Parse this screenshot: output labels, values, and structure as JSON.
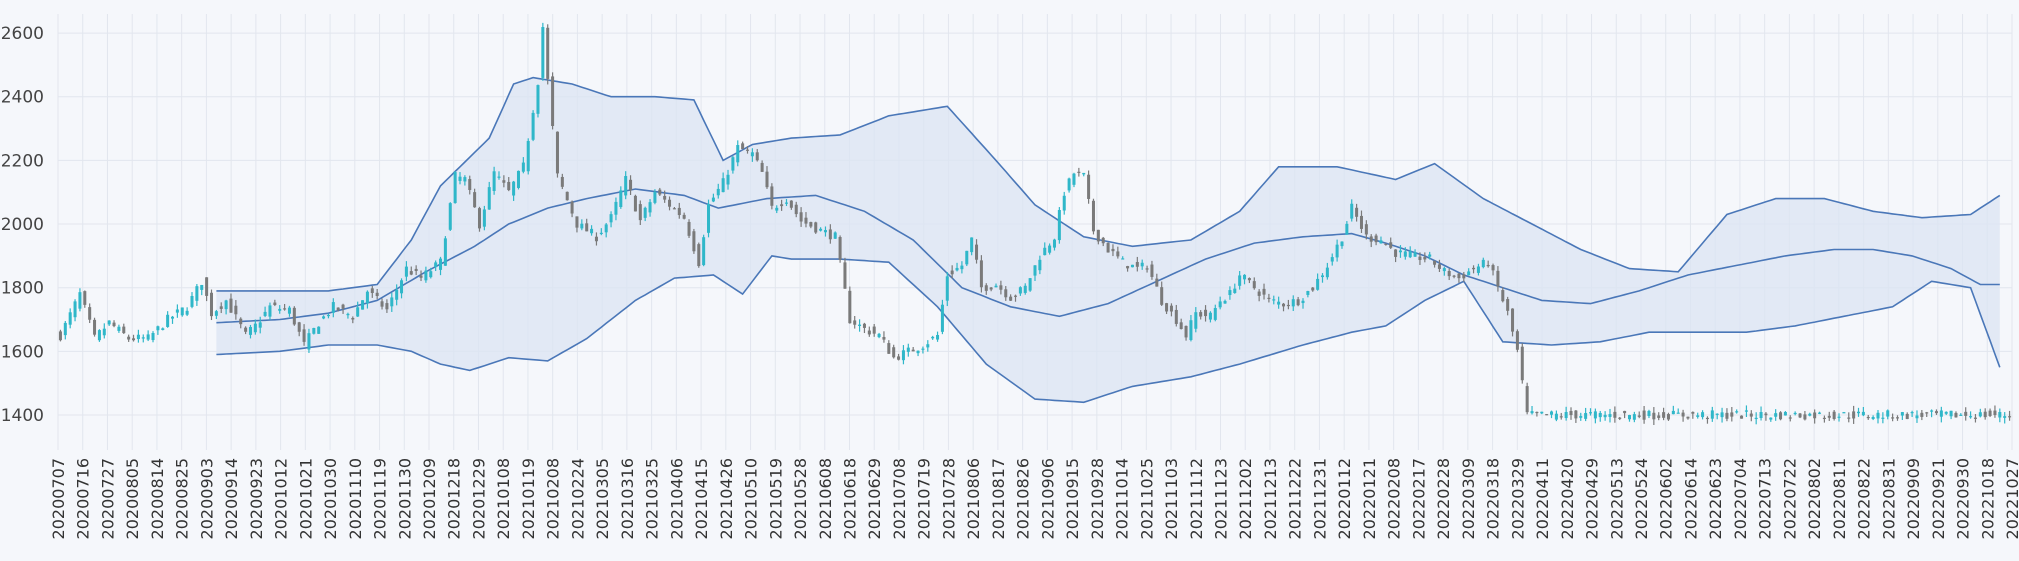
{
  "chart_data": {
    "type": "candlestick",
    "title": "",
    "xlabel": "",
    "ylabel": "",
    "ylim": [
      1290,
      2660
    ],
    "yticks": [
      1400,
      1600,
      1800,
      2000,
      2200,
      2400,
      2600
    ],
    "grid": true,
    "colors": {
      "up": "#2fb7c9",
      "down": "#7a7a7a",
      "band_line": "#4a77b8",
      "band_fill": "#dbe4f3",
      "grid": "#e2e6ee",
      "background": "#f5f7fb"
    },
    "x_tick_labels": [
      "20200707",
      "20200716",
      "20200727",
      "20200805",
      "20200814",
      "20200825",
      "20200903",
      "20200914",
      "20200923",
      "20201012",
      "20201021",
      "20201030",
      "20201110",
      "20201119",
      "20201130",
      "20201209",
      "20201218",
      "20201229",
      "20210108",
      "20210119",
      "20210208",
      "20210224",
      "20210305",
      "20210316",
      "20210325",
      "20210406",
      "20210415",
      "20210426",
      "20210510",
      "20210519",
      "20210528",
      "20210608",
      "20210618",
      "20210629",
      "20210708",
      "20210719",
      "20210728",
      "20210806",
      "20210817",
      "20210826",
      "20210906",
      "20210915",
      "20210928",
      "20211014",
      "20211025",
      "20211103",
      "20211112",
      "20211123",
      "20211202",
      "20211213",
      "20211222",
      "20211231",
      "20220112",
      "20220121",
      "20220208",
      "20220217",
      "20220228",
      "20220309",
      "20220318",
      "20220329",
      "20220411",
      "20220420",
      "20220429",
      "20220513",
      "20220524",
      "20220602",
      "20220614",
      "20220623",
      "20220704",
      "20220713",
      "20220722",
      "20220802",
      "20220811",
      "20220822",
      "20220831",
      "20220909",
      "20220921",
      "20220930",
      "20221018",
      "20221027"
    ],
    "price_path": [
      [
        0,
        1650
      ],
      [
        4,
        1780
      ],
      [
        7,
        1640
      ],
      [
        10,
        1690
      ],
      [
        14,
        1640
      ],
      [
        18,
        1640
      ],
      [
        22,
        1700
      ],
      [
        26,
        1740
      ],
      [
        29,
        1820
      ],
      [
        31,
        1720
      ],
      [
        34,
        1760
      ],
      [
        38,
        1650
      ],
      [
        40,
        1680
      ],
      [
        43,
        1740
      ],
      [
        47,
        1730
      ],
      [
        50,
        1620
      ],
      [
        53,
        1690
      ],
      [
        56,
        1740
      ],
      [
        60,
        1710
      ],
      [
        63,
        1790
      ],
      [
        67,
        1730
      ],
      [
        71,
        1860
      ],
      [
        74,
        1830
      ],
      [
        78,
        1880
      ],
      [
        81,
        2150
      ],
      [
        83,
        2140
      ],
      [
        86,
        2000
      ],
      [
        89,
        2160
      ],
      [
        92,
        2100
      ],
      [
        95,
        2180
      ],
      [
        98,
        2450
      ],
      [
        99,
        2620
      ],
      [
        100,
        2450
      ],
      [
        102,
        2150
      ],
      [
        106,
        2000
      ],
      [
        110,
        1960
      ],
      [
        113,
        2020
      ],
      [
        116,
        2140
      ],
      [
        119,
        2010
      ],
      [
        122,
        2100
      ],
      [
        125,
        2060
      ],
      [
        128,
        2020
      ],
      [
        131,
        1880
      ],
      [
        133,
        2060
      ],
      [
        136,
        2130
      ],
      [
        139,
        2240
      ],
      [
        142,
        2220
      ],
      [
        144,
        2160
      ],
      [
        146,
        2050
      ],
      [
        149,
        2080
      ],
      [
        152,
        2010
      ],
      [
        156,
        1980
      ],
      [
        159,
        1960
      ],
      [
        162,
        1700
      ],
      [
        165,
        1670
      ],
      [
        168,
        1650
      ],
      [
        171,
        1580
      ],
      [
        174,
        1600
      ],
      [
        177,
        1620
      ],
      [
        180,
        1650
      ],
      [
        182,
        1840
      ],
      [
        185,
        1870
      ],
      [
        187,
        1950
      ],
      [
        189,
        1800
      ],
      [
        192,
        1810
      ],
      [
        195,
        1770
      ],
      [
        198,
        1800
      ],
      [
        201,
        1900
      ],
      [
        204,
        1960
      ],
      [
        206,
        2100
      ],
      [
        208,
        2160
      ],
      [
        210,
        2150
      ],
      [
        212,
        1980
      ],
      [
        215,
        1920
      ],
      [
        218,
        1880
      ],
      [
        221,
        1860
      ],
      [
        223,
        1870
      ],
      [
        226,
        1760
      ],
      [
        229,
        1700
      ],
      [
        231,
        1650
      ],
      [
        233,
        1720
      ],
      [
        236,
        1710
      ],
      [
        238,
        1760
      ],
      [
        240,
        1780
      ],
      [
        242,
        1840
      ],
      [
        245,
        1800
      ],
      [
        248,
        1760
      ],
      [
        251,
        1750
      ],
      [
        254,
        1760
      ],
      [
        257,
        1800
      ],
      [
        260,
        1870
      ],
      [
        263,
        1960
      ],
      [
        265,
        2050
      ],
      [
        268,
        1960
      ],
      [
        271,
        1950
      ],
      [
        274,
        1910
      ],
      [
        277,
        1900
      ],
      [
        281,
        1890
      ],
      [
        284,
        1850
      ],
      [
        287,
        1830
      ],
      [
        290,
        1860
      ],
      [
        293,
        1880
      ],
      [
        295,
        1800
      ],
      [
        297,
        1720
      ],
      [
        299,
        1600
      ],
      [
        301,
        1400
      ]
    ],
    "bollinger_start_index": 32,
    "bollinger_mid": [
      [
        32,
        1690
      ],
      [
        45,
        1700
      ],
      [
        55,
        1720
      ],
      [
        65,
        1760
      ],
      [
        75,
        1850
      ],
      [
        85,
        1930
      ],
      [
        92,
        2000
      ],
      [
        100,
        2050
      ],
      [
        108,
        2080
      ],
      [
        118,
        2110
      ],
      [
        128,
        2090
      ],
      [
        135,
        2050
      ],
      [
        145,
        2080
      ],
      [
        155,
        2090
      ],
      [
        165,
        2040
      ],
      [
        175,
        1950
      ],
      [
        185,
        1800
      ],
      [
        195,
        1740
      ],
      [
        205,
        1710
      ],
      [
        215,
        1750
      ],
      [
        225,
        1820
      ],
      [
        235,
        1890
      ],
      [
        245,
        1940
      ],
      [
        255,
        1960
      ],
      [
        265,
        1970
      ],
      [
        272,
        1940
      ],
      [
        280,
        1900
      ],
      [
        288,
        1840
      ],
      [
        296,
        1800
      ],
      [
        304,
        1760
      ],
      [
        314,
        1750
      ],
      [
        324,
        1790
      ],
      [
        334,
        1840
      ],
      [
        344,
        1870
      ],
      [
        354,
        1900
      ],
      [
        364,
        1920
      ],
      [
        372,
        1920
      ],
      [
        380,
        1900
      ],
      [
        388,
        1860
      ],
      [
        394,
        1810
      ]
    ],
    "bollinger_upper": [
      [
        32,
        1790
      ],
      [
        45,
        1790
      ],
      [
        55,
        1790
      ],
      [
        65,
        1810
      ],
      [
        72,
        1950
      ],
      [
        78,
        2120
      ],
      [
        88,
        2270
      ],
      [
        93,
        2440
      ],
      [
        97,
        2460
      ],
      [
        105,
        2440
      ],
      [
        113,
        2400
      ],
      [
        122,
        2400
      ],
      [
        130,
        2390
      ],
      [
        136,
        2200
      ],
      [
        142,
        2250
      ],
      [
        150,
        2270
      ],
      [
        160,
        2280
      ],
      [
        170,
        2340
      ],
      [
        182,
        2370
      ],
      [
        192,
        2200
      ],
      [
        200,
        2060
      ],
      [
        210,
        1960
      ],
      [
        220,
        1930
      ],
      [
        232,
        1950
      ],
      [
        242,
        2040
      ],
      [
        250,
        2180
      ],
      [
        262,
        2180
      ],
      [
        274,
        2140
      ],
      [
        282,
        2190
      ],
      [
        292,
        2080
      ],
      [
        302,
        2000
      ],
      [
        312,
        1920
      ],
      [
        322,
        1860
      ],
      [
        332,
        1850
      ],
      [
        342,
        2030
      ],
      [
        352,
        2080
      ],
      [
        362,
        2080
      ],
      [
        372,
        2040
      ],
      [
        382,
        2020
      ],
      [
        392,
        2030
      ],
      [
        398,
        2090
      ]
    ],
    "bollinger_lower": [
      [
        32,
        1590
      ],
      [
        45,
        1600
      ],
      [
        55,
        1620
      ],
      [
        65,
        1620
      ],
      [
        72,
        1600
      ],
      [
        78,
        1560
      ],
      [
        84,
        1540
      ],
      [
        92,
        1580
      ],
      [
        100,
        1570
      ],
      [
        108,
        1640
      ],
      [
        118,
        1760
      ],
      [
        126,
        1830
      ],
      [
        134,
        1840
      ],
      [
        140,
        1780
      ],
      [
        146,
        1900
      ],
      [
        150,
        1890
      ],
      [
        160,
        1890
      ],
      [
        170,
        1880
      ],
      [
        180,
        1740
      ],
      [
        190,
        1560
      ],
      [
        200,
        1450
      ],
      [
        210,
        1440
      ],
      [
        220,
        1490
      ],
      [
        232,
        1520
      ],
      [
        242,
        1560
      ],
      [
        255,
        1620
      ],
      [
        265,
        1660
      ],
      [
        272,
        1680
      ],
      [
        280,
        1760
      ],
      [
        288,
        1820
      ],
      [
        296,
        1630
      ],
      [
        306,
        1620
      ],
      [
        316,
        1630
      ],
      [
        326,
        1660
      ],
      [
        336,
        1660
      ],
      [
        346,
        1660
      ],
      [
        356,
        1680
      ],
      [
        366,
        1710
      ],
      [
        376,
        1740
      ],
      [
        384,
        1820
      ],
      [
        392,
        1800
      ],
      [
        398,
        1550
      ]
    ]
  }
}
